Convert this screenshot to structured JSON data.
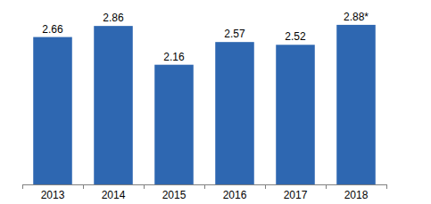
{
  "chart_data": {
    "type": "bar",
    "categories": [
      "2013",
      "2014",
      "2015",
      "2016",
      "2017",
      "2018"
    ],
    "values": [
      2.66,
      2.86,
      2.16,
      2.57,
      2.52,
      2.88
    ],
    "value_labels": [
      "2.66",
      "2.86",
      "2.16",
      "2.57",
      "2.52",
      "2.88*"
    ],
    "color": "#2e67b1",
    "ylim": [
      0,
      3.2
    ],
    "data_labels": true,
    "tick_labels": "x",
    "grid": false
  }
}
